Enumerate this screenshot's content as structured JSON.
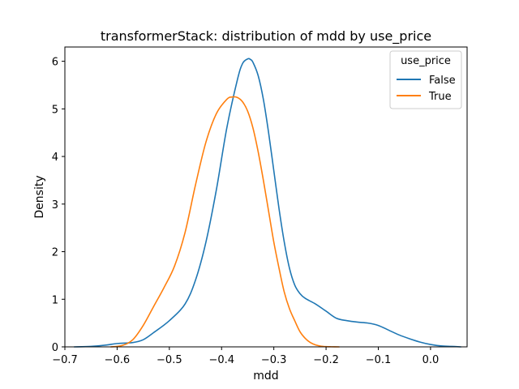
{
  "chart_data": {
    "type": "line",
    "title": "transformerStack: distribution of mdd by use_price",
    "xlabel": "mdd",
    "ylabel": "Density",
    "xlim": [
      -0.7,
      0.07
    ],
    "ylim": [
      0,
      6.3
    ],
    "xticks": [
      -0.7,
      -0.6,
      -0.5,
      -0.4,
      -0.3,
      -0.2,
      -0.1,
      0.0
    ],
    "xtick_labels": [
      "−0.7",
      "−0.6",
      "−0.5",
      "−0.4",
      "−0.3",
      "−0.2",
      "−0.1",
      "0.0"
    ],
    "yticks": [
      0,
      1,
      2,
      3,
      4,
      5,
      6
    ],
    "ytick_labels": [
      "0",
      "1",
      "2",
      "3",
      "4",
      "5",
      "6"
    ],
    "grid": false,
    "legend": {
      "title": "use_price",
      "position": "top-right"
    },
    "series": [
      {
        "name": "False",
        "color": "#1f77b4",
        "x": [
          -0.682,
          -0.65,
          -0.62,
          -0.6,
          -0.57,
          -0.55,
          -0.53,
          -0.5,
          -0.47,
          -0.45,
          -0.43,
          -0.41,
          -0.39,
          -0.37,
          -0.36,
          -0.35,
          -0.345,
          -0.34,
          -0.33,
          -0.32,
          -0.31,
          -0.3,
          -0.29,
          -0.28,
          -0.27,
          -0.26,
          -0.25,
          -0.24,
          -0.22,
          -0.2,
          -0.18,
          -0.16,
          -0.14,
          -0.12,
          -0.1,
          -0.08,
          -0.06,
          -0.04,
          -0.02,
          0.0,
          0.02,
          0.04,
          0.058
        ],
        "y": [
          0.0,
          0.01,
          0.04,
          0.07,
          0.09,
          0.15,
          0.3,
          0.55,
          0.9,
          1.4,
          2.2,
          3.3,
          4.6,
          5.6,
          5.95,
          6.05,
          6.04,
          5.98,
          5.7,
          5.2,
          4.5,
          3.7,
          2.9,
          2.2,
          1.65,
          1.3,
          1.12,
          1.02,
          0.9,
          0.75,
          0.6,
          0.55,
          0.52,
          0.5,
          0.45,
          0.35,
          0.25,
          0.17,
          0.1,
          0.05,
          0.02,
          0.01,
          0.0
        ]
      },
      {
        "name": "True",
        "color": "#ff7f0e",
        "x": [
          -0.612,
          -0.59,
          -0.57,
          -0.55,
          -0.53,
          -0.51,
          -0.49,
          -0.47,
          -0.45,
          -0.43,
          -0.41,
          -0.39,
          -0.38,
          -0.37,
          -0.36,
          -0.35,
          -0.34,
          -0.33,
          -0.32,
          -0.31,
          -0.3,
          -0.29,
          -0.28,
          -0.27,
          -0.26,
          -0.25,
          -0.24,
          -0.23,
          -0.22,
          -0.21,
          -0.2,
          -0.19,
          -0.175
        ],
        "y": [
          0.0,
          0.03,
          0.15,
          0.45,
          0.85,
          1.25,
          1.7,
          2.4,
          3.4,
          4.3,
          4.9,
          5.2,
          5.25,
          5.24,
          5.15,
          4.95,
          4.6,
          4.1,
          3.5,
          2.85,
          2.2,
          1.65,
          1.15,
          0.8,
          0.55,
          0.32,
          0.18,
          0.09,
          0.04,
          0.015,
          0.005,
          0.002,
          0.0
        ]
      }
    ]
  }
}
